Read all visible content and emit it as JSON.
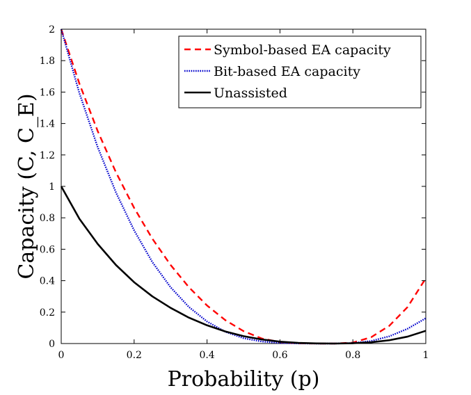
{
  "chart_data": {
    "type": "line",
    "xlabel": "Probability (p)",
    "ylabel": "Capacity (C, C_E)",
    "xlim": [
      0,
      1
    ],
    "ylim": [
      0,
      2
    ],
    "x_ticks": [
      "0",
      "0.2",
      "0.4",
      "0.6",
      "0.8",
      "1"
    ],
    "y_ticks": [
      "0",
      "0.2",
      "0.4",
      "0.6",
      "0.8",
      "1",
      "1.2",
      "1.4",
      "1.6",
      "1.8",
      "2"
    ],
    "grid": false,
    "legend_position": "top-right",
    "series": [
      {
        "name": "Symbol-based EA capacity",
        "color": "#ff0000",
        "style": "dashed",
        "x": [
          0,
          0.05,
          0.1,
          0.15,
          0.2,
          0.25,
          0.3,
          0.35,
          0.4,
          0.45,
          0.5,
          0.55,
          0.6,
          0.65,
          0.7,
          0.75,
          0.8,
          0.85,
          0.9,
          0.95,
          1.0
        ],
        "y": [
          2.0,
          1.653,
          1.352,
          1.09,
          0.863,
          0.667,
          0.5,
          0.359,
          0.242,
          0.149,
          0.079,
          0.032,
          0.009,
          0.001,
          0.0,
          0.0,
          0.006,
          0.04,
          0.113,
          0.232,
          0.415
        ]
      },
      {
        "name": "Bit-based EA capacity",
        "color": "#0000cc",
        "style": "dotted",
        "x": [
          0,
          0.05,
          0.1,
          0.15,
          0.2,
          0.25,
          0.3,
          0.35,
          0.4,
          0.45,
          0.5,
          0.55,
          0.6,
          0.65,
          0.7,
          0.75,
          0.8,
          0.85,
          0.9,
          0.95,
          1.0
        ],
        "y": [
          2.0,
          1.592,
          1.25,
          0.962,
          0.72,
          0.518,
          0.358,
          0.233,
          0.14,
          0.075,
          0.034,
          0.013,
          0.004,
          0.001,
          0.0,
          0.0,
          0.003,
          0.016,
          0.046,
          0.094,
          0.161
        ]
      },
      {
        "name": "Unassisted",
        "color": "#000000",
        "style": "solid",
        "x": [
          0,
          0.05,
          0.1,
          0.15,
          0.2,
          0.25,
          0.3,
          0.35,
          0.4,
          0.45,
          0.5,
          0.55,
          0.6,
          0.65,
          0.7,
          0.75,
          0.8,
          0.85,
          0.9,
          0.95,
          1.0
        ],
        "y": [
          1.0,
          0.793,
          0.634,
          0.5,
          0.39,
          0.3,
          0.227,
          0.165,
          0.116,
          0.077,
          0.047,
          0.026,
          0.012,
          0.004,
          0.001,
          0.0,
          0.002,
          0.008,
          0.021,
          0.044,
          0.081
        ]
      }
    ]
  }
}
